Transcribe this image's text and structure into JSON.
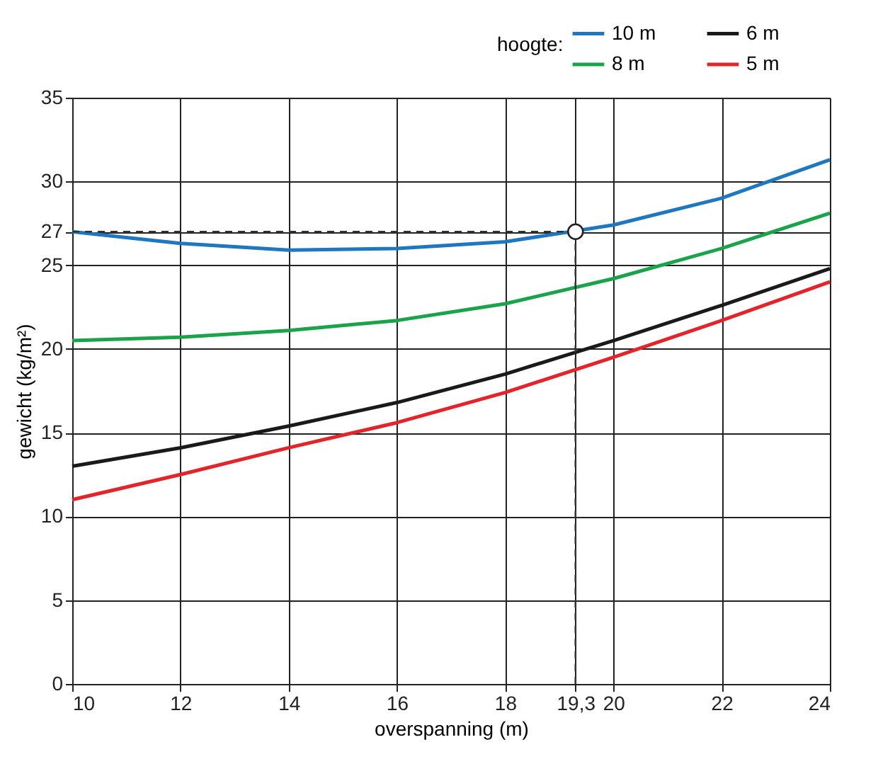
{
  "chart_data": {
    "type": "line",
    "xlabel": "overspanning (m)",
    "ylabel": "gewicht (kg/m²)",
    "legend_title": "hoogte:",
    "x": [
      10,
      12,
      14,
      16,
      18,
      20,
      22,
      24
    ],
    "xlim": [
      10,
      24
    ],
    "xticks": [
      10,
      12,
      14,
      16,
      18,
      {
        "value": 19.3,
        "label": "19,3"
      },
      20,
      22,
      24
    ],
    "ylim": [
      0,
      35
    ],
    "yticks": [
      0,
      5,
      10,
      15,
      20,
      25,
      {
        "value": 27,
        "label": "27"
      },
      30,
      35
    ],
    "grid": true,
    "legend": "top right",
    "marker": "none",
    "line_style": "solid",
    "series": [
      {
        "name": "10 m",
        "color": "#1f77c0",
        "values": [
          27,
          26.3,
          25.9,
          26,
          26.4,
          27.4,
          29,
          31.3
        ]
      },
      {
        "name": "8 m",
        "color": "#1aa34a",
        "values": [
          20.5,
          20.7,
          21.1,
          21.7,
          22.7,
          24.2,
          26,
          28.1
        ]
      },
      {
        "name": "6 m",
        "color": "#1a1a1a",
        "values": [
          13,
          14.1,
          15.4,
          16.8,
          18.5,
          20.5,
          22.6,
          24.8
        ]
      },
      {
        "name": "5 m",
        "color": "#e3242b",
        "values": [
          11,
          12.5,
          14.1,
          15.6,
          17.4,
          19.5,
          21.7,
          24
        ]
      },
      {
        "type": "scatter",
        "marker": "circle",
        "color": "#ffffff",
        "x": [
          19.3
        ],
        "values": [
          27
        ]
      }
    ],
    "ref_lines": [
      {
        "axis": "x",
        "value": 19.3,
        "line_style": "dashed",
        "color": "#333333"
      },
      {
        "axis": "y",
        "value": 27,
        "line_style": "dashed",
        "color": "#333333"
      }
    ]
  }
}
